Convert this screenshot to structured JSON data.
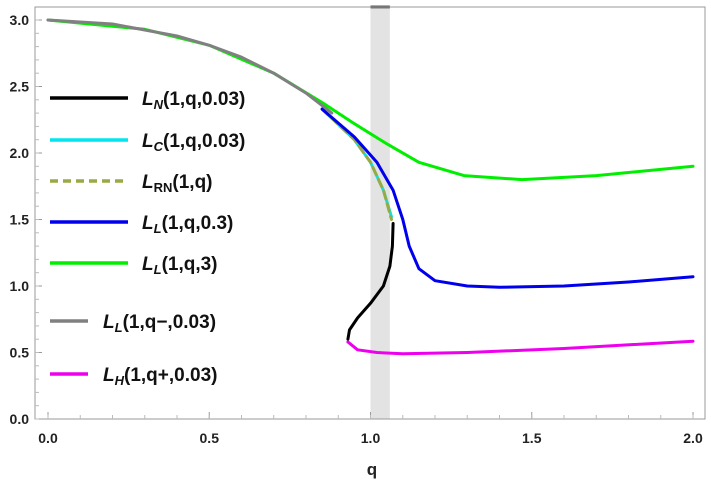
{
  "chart_data": {
    "type": "line",
    "xlabel": "q",
    "ylabel": "",
    "xlim": [
      0,
      2
    ],
    "ylim": [
      0,
      3
    ],
    "xticks": [
      "0.0",
      "0.5",
      "1.0",
      "1.5",
      "2.0"
    ],
    "yticks": [
      "0.0",
      "0.5",
      "1.0",
      "1.5",
      "2.0",
      "2.5",
      "3.0"
    ],
    "grid": false,
    "shaded_band": {
      "x": [
        1.0,
        1.06
      ],
      "color": "#e3e3e3"
    },
    "legend_placement": "left",
    "series": [
      {
        "name": "L_N(1,q,0.03)",
        "main": "L",
        "sub": "N",
        "args": "(1,q,0.03)",
        "color": "#000000",
        "dash": false,
        "points": [
          [
            1.07,
            1.47
          ],
          [
            1.068,
            1.3
          ],
          [
            1.06,
            1.15
          ],
          [
            1.04,
            1.0
          ],
          [
            1.0,
            0.87
          ],
          [
            0.96,
            0.76
          ],
          [
            0.935,
            0.67
          ],
          [
            0.93,
            0.6
          ]
        ]
      },
      {
        "name": "L_C(1,q,0.03)",
        "main": "L",
        "sub": "C",
        "args": "(1,q,0.03)",
        "color": "#00e5ee",
        "dash": false,
        "points": [
          [
            0.85,
            2.33
          ],
          [
            0.95,
            2.1
          ],
          [
            1.0,
            1.93
          ],
          [
            1.04,
            1.72
          ],
          [
            1.065,
            1.52
          ]
        ]
      },
      {
        "name": "L_RN(1,q)",
        "main": "L",
        "sub": "RN",
        "args": "(1,q)",
        "color": "#99aa44",
        "dash": true,
        "points": [
          [
            0.85,
            2.33
          ],
          [
            0.95,
            2.1
          ],
          [
            1.0,
            1.93
          ],
          [
            1.04,
            1.72
          ],
          [
            1.065,
            1.5
          ]
        ]
      },
      {
        "name": "L_L(1,q,0.3)",
        "main": "L",
        "sub": "L",
        "args": "(1,q,0.3)",
        "color": "#0000ee",
        "dash": false,
        "points": [
          [
            0.85,
            2.33
          ],
          [
            0.95,
            2.12
          ],
          [
            1.02,
            1.93
          ],
          [
            1.07,
            1.72
          ],
          [
            1.1,
            1.5
          ],
          [
            1.12,
            1.3
          ],
          [
            1.15,
            1.13
          ],
          [
            1.2,
            1.04
          ],
          [
            1.3,
            1.0
          ],
          [
            1.4,
            0.99
          ],
          [
            1.6,
            1.0
          ],
          [
            1.8,
            1.03
          ],
          [
            2.0,
            1.07
          ]
        ]
      },
      {
        "name": "L_L(1,q,3)",
        "main": "L",
        "sub": "L",
        "args": "(1,q,3)",
        "color": "#00ee00",
        "dash": false,
        "points": [
          [
            0.0,
            3.0
          ],
          [
            0.3,
            2.93
          ],
          [
            0.5,
            2.81
          ],
          [
            0.7,
            2.6
          ],
          [
            0.85,
            2.38
          ],
          [
            0.95,
            2.22
          ],
          [
            1.05,
            2.07
          ],
          [
            1.15,
            1.93
          ],
          [
            1.29,
            1.83
          ],
          [
            1.47,
            1.8
          ],
          [
            1.7,
            1.83
          ],
          [
            2.0,
            1.9
          ]
        ]
      },
      {
        "name": "L_L(1,q-,0.03)",
        "main": "L",
        "sub": "L",
        "args": "(1,q−,0.03)",
        "color": "#808080",
        "dash": false,
        "points": [
          [
            0.0,
            3.0
          ],
          [
            0.2,
            2.97
          ],
          [
            0.4,
            2.88
          ],
          [
            0.5,
            2.81
          ],
          [
            0.6,
            2.72
          ],
          [
            0.7,
            2.6
          ],
          [
            0.8,
            2.45
          ],
          [
            0.88,
            2.3
          ]
        ]
      },
      {
        "name": "L_H(1,q+,0.03)",
        "main": "L",
        "sub": "H",
        "args": "(1,q+,0.03)",
        "color": "#ee00ee",
        "dash": false,
        "points": [
          [
            0.93,
            0.58
          ],
          [
            0.96,
            0.52
          ],
          [
            1.02,
            0.5
          ],
          [
            1.1,
            0.49
          ],
          [
            1.3,
            0.5
          ],
          [
            1.6,
            0.53
          ],
          [
            2.0,
            0.585
          ]
        ]
      }
    ]
  }
}
